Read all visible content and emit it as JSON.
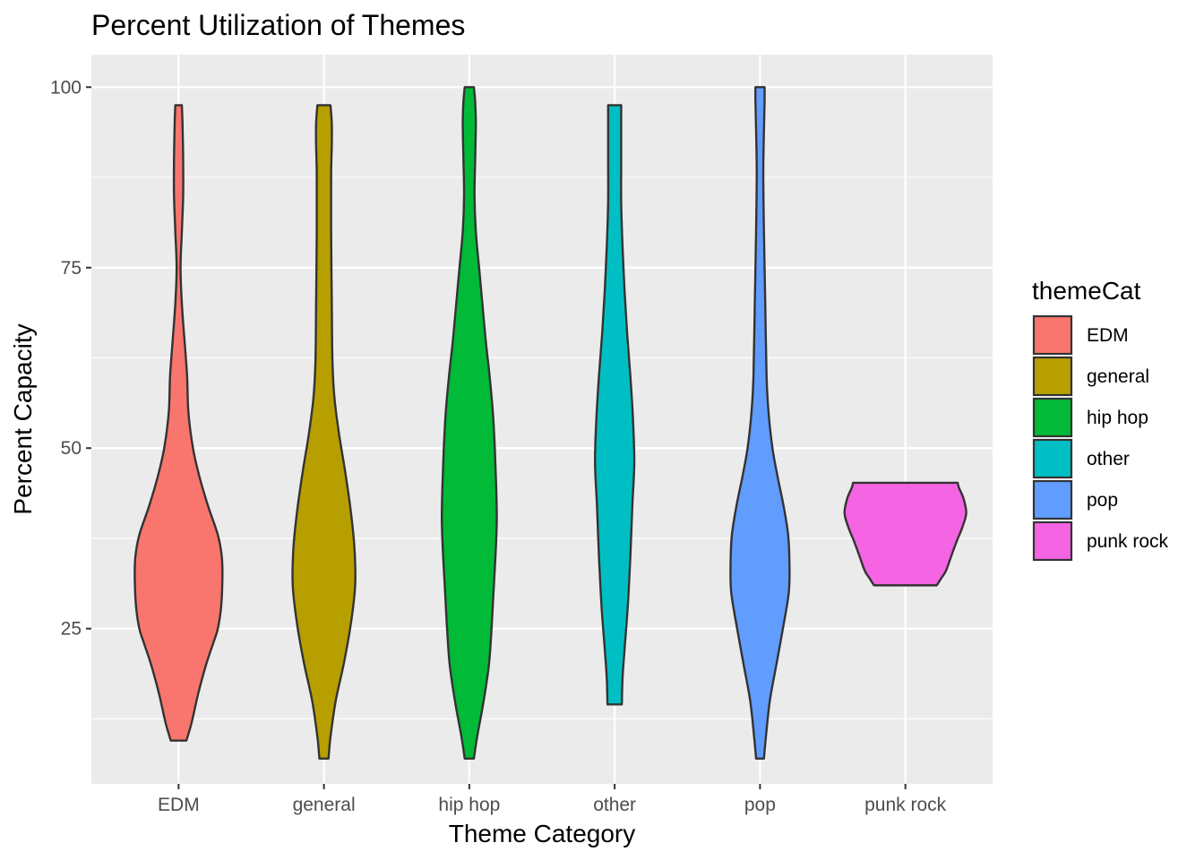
{
  "chart_data": {
    "type": "violin",
    "title": "Percent Utilization of Themes",
    "xlabel": "Theme Category",
    "ylabel": "Percent Capacity",
    "categories": [
      "EDM",
      "general",
      "hip hop",
      "other",
      "pop",
      "punk rock"
    ],
    "y_ticks": [
      25,
      50,
      75,
      100
    ],
    "y_tick_labels": [
      "25",
      "50",
      "75",
      "100"
    ],
    "ylim": [
      3.5,
      104.5
    ],
    "grid": true,
    "legend": {
      "title": "themeCat",
      "position": "right",
      "entries": [
        "EDM",
        "general",
        "hip hop",
        "other",
        "pop",
        "punk rock"
      ]
    },
    "colors": {
      "EDM": "#F8766D",
      "general": "#B79F00",
      "hip hop": "#00BA38",
      "other": "#00BFC4",
      "pop": "#619CFF",
      "punk rock": "#F564E3",
      "panel": "#EBEBEB",
      "outline": "#333333"
    },
    "series": [
      {
        "name": "EDM",
        "profile": [
          [
            9.5,
            0.12
          ],
          [
            12,
            0.2
          ],
          [
            16,
            0.3
          ],
          [
            20,
            0.42
          ],
          [
            23,
            0.53
          ],
          [
            25,
            0.6
          ],
          [
            28,
            0.65
          ],
          [
            32,
            0.67
          ],
          [
            35,
            0.66
          ],
          [
            38,
            0.6
          ],
          [
            42,
            0.45
          ],
          [
            46,
            0.32
          ],
          [
            50,
            0.22
          ],
          [
            55,
            0.15
          ],
          [
            60,
            0.13
          ],
          [
            65,
            0.09
          ],
          [
            70,
            0.05
          ],
          [
            75,
            0.03
          ],
          [
            80,
            0.05
          ],
          [
            85,
            0.07
          ],
          [
            90,
            0.07
          ],
          [
            95,
            0.06
          ],
          [
            97.5,
            0.05
          ]
        ]
      },
      {
        "name": "general",
        "profile": [
          [
            7,
            0.07
          ],
          [
            10,
            0.1
          ],
          [
            15,
            0.18
          ],
          [
            20,
            0.3
          ],
          [
            25,
            0.4
          ],
          [
            30,
            0.47
          ],
          [
            33,
            0.48
          ],
          [
            37,
            0.46
          ],
          [
            42,
            0.4
          ],
          [
            47,
            0.32
          ],
          [
            52,
            0.23
          ],
          [
            57,
            0.16
          ],
          [
            62,
            0.13
          ],
          [
            70,
            0.12
          ],
          [
            80,
            0.11
          ],
          [
            88,
            0.11
          ],
          [
            92,
            0.12
          ],
          [
            95,
            0.12
          ],
          [
            97.5,
            0.1
          ]
        ]
      },
      {
        "name": "hip hop",
        "profile": [
          [
            7,
            0.07
          ],
          [
            10,
            0.12
          ],
          [
            15,
            0.22
          ],
          [
            20,
            0.3
          ],
          [
            25,
            0.34
          ],
          [
            30,
            0.37
          ],
          [
            35,
            0.4
          ],
          [
            40,
            0.42
          ],
          [
            45,
            0.41
          ],
          [
            50,
            0.39
          ],
          [
            55,
            0.36
          ],
          [
            60,
            0.31
          ],
          [
            65,
            0.25
          ],
          [
            70,
            0.2
          ],
          [
            75,
            0.15
          ],
          [
            80,
            0.1
          ],
          [
            85,
            0.08
          ],
          [
            90,
            0.09
          ],
          [
            95,
            0.1
          ],
          [
            98,
            0.09
          ],
          [
            100,
            0.07
          ]
        ]
      },
      {
        "name": "other",
        "profile": [
          [
            14.5,
            0.11
          ],
          [
            18,
            0.12
          ],
          [
            22,
            0.15
          ],
          [
            28,
            0.2
          ],
          [
            35,
            0.24
          ],
          [
            42,
            0.27
          ],
          [
            48,
            0.3
          ],
          [
            54,
            0.28
          ],
          [
            60,
            0.24
          ],
          [
            66,
            0.19
          ],
          [
            72,
            0.15
          ],
          [
            78,
            0.12
          ],
          [
            84,
            0.1
          ],
          [
            90,
            0.1
          ],
          [
            95,
            0.1
          ],
          [
            97.5,
            0.1
          ]
        ]
      },
      {
        "name": "pop",
        "profile": [
          [
            7,
            0.06
          ],
          [
            10,
            0.09
          ],
          [
            15,
            0.15
          ],
          [
            20,
            0.25
          ],
          [
            25,
            0.35
          ],
          [
            30,
            0.44
          ],
          [
            34,
            0.45
          ],
          [
            38,
            0.43
          ],
          [
            42,
            0.36
          ],
          [
            46,
            0.27
          ],
          [
            50,
            0.19
          ],
          [
            55,
            0.13
          ],
          [
            60,
            0.1
          ],
          [
            70,
            0.08
          ],
          [
            80,
            0.06
          ],
          [
            88,
            0.05
          ],
          [
            94,
            0.06
          ],
          [
            98,
            0.07
          ],
          [
            100,
            0.07
          ]
        ]
      },
      {
        "name": "punk rock",
        "profile": [
          [
            31,
            0.48
          ],
          [
            32,
            0.55
          ],
          [
            33,
            0.62
          ],
          [
            35,
            0.7
          ],
          [
            37,
            0.78
          ],
          [
            39,
            0.87
          ],
          [
            41,
            0.93
          ],
          [
            43,
            0.89
          ],
          [
            44.5,
            0.82
          ],
          [
            45.2,
            0.8
          ]
        ]
      }
    ]
  }
}
